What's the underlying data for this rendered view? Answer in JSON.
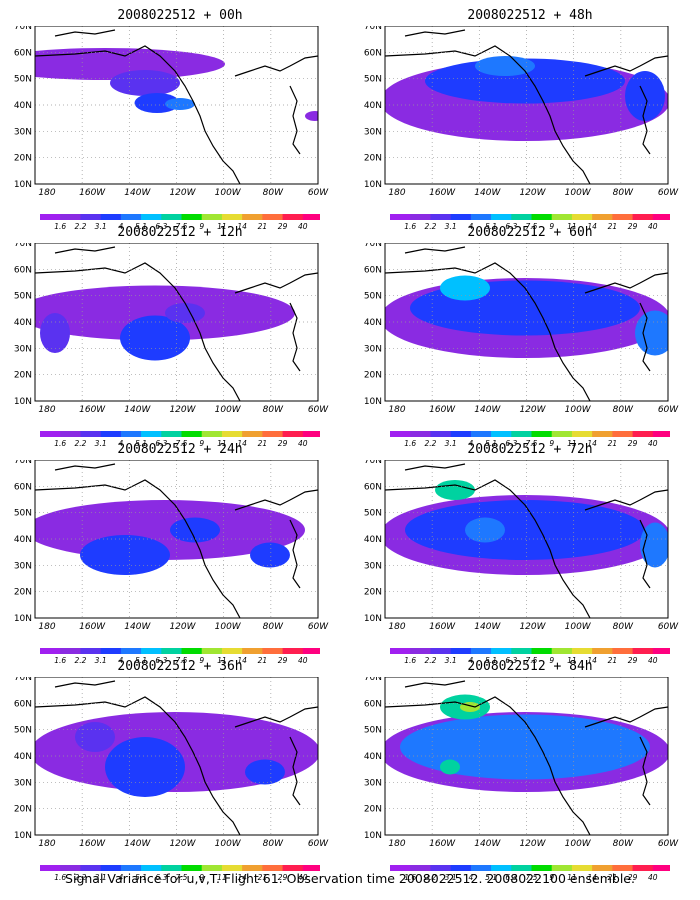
{
  "lat_labels": [
    "70N",
    "60N",
    "50N",
    "40N",
    "30N",
    "20N",
    "10N"
  ],
  "lon_labels": [
    "180",
    "160W",
    "140W",
    "120W",
    "100W",
    "80W",
    "60W"
  ],
  "colorbar": {
    "levels": [
      "1.6",
      "2.2",
      "3.1",
      "4",
      "5.1",
      "6.3",
      "7.5",
      "9",
      "11",
      "14",
      "21",
      "29",
      "40"
    ],
    "colors": [
      "#a020f0",
      "#8a2be2",
      "#5a32f0",
      "#1e3cff",
      "#1e78ff",
      "#00c0ff",
      "#00d2a0",
      "#00dc00",
      "#a0e632",
      "#e6dc32",
      "#f0a030",
      "#ff6e3c",
      "#ff1e50",
      "#ff007f"
    ]
  },
  "panels": [
    {
      "title": "2008022512 + 00h",
      "col": 0,
      "row": 0
    },
    {
      "title": "2008022512 + 12h",
      "col": 0,
      "row": 1
    },
    {
      "title": "2008022512 + 24h",
      "col": 0,
      "row": 2
    },
    {
      "title": "2008022512 + 36h",
      "col": 0,
      "row": 3
    },
    {
      "title": "2008022512 + 48h",
      "col": 1,
      "row": 0
    },
    {
      "title": "2008022512 + 60h",
      "col": 1,
      "row": 1
    },
    {
      "title": "2008022512 + 72h",
      "col": 1,
      "row": 2
    },
    {
      "title": "2008022512 + 84h",
      "col": 1,
      "row": 3
    }
  ],
  "footer": "Signal Variance for u,v,T. Flight 61. Observation time 2008022512. 2008022100 ensemble."
}
